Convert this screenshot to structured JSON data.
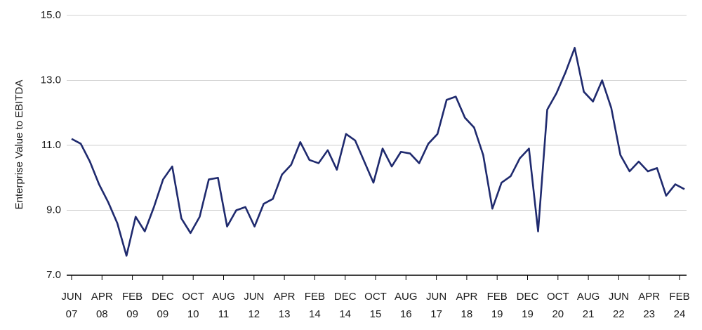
{
  "chart_data": {
    "type": "line",
    "y_label": "Enterprise Value to EBITDA",
    "x_tick_labels": [
      [
        "JUN",
        "07"
      ],
      [
        "APR",
        "08"
      ],
      [
        "FEB",
        "09"
      ],
      [
        "DEC",
        "09"
      ],
      [
        "OCT",
        "10"
      ],
      [
        "AUG",
        "11"
      ],
      [
        "JUN",
        "12"
      ],
      [
        "APR",
        "13"
      ],
      [
        "FEB",
        "14"
      ],
      [
        "DEC",
        "14"
      ],
      [
        "OCT",
        "15"
      ],
      [
        "AUG",
        "16"
      ],
      [
        "JUN",
        "17"
      ],
      [
        "APR",
        "18"
      ],
      [
        "FEB",
        "19"
      ],
      [
        "DEC",
        "19"
      ],
      [
        "OCT",
        "20"
      ],
      [
        "AUG",
        "21"
      ],
      [
        "JUN",
        "22"
      ],
      [
        "APR",
        "23"
      ],
      [
        "FEB",
        "24"
      ]
    ],
    "color": "#1f2a6e",
    "values": [
      11.2,
      11.05,
      10.5,
      9.8,
      9.25,
      8.6,
      7.6,
      8.8,
      8.35,
      9.1,
      9.95,
      10.35,
      8.75,
      8.3,
      8.8,
      9.95,
      10.0,
      8.5,
      9.0,
      9.1,
      8.5,
      9.2,
      9.35,
      10.1,
      10.4,
      11.1,
      10.55,
      10.45,
      10.85,
      10.25,
      11.35,
      11.15,
      10.5,
      9.85,
      10.9,
      10.35,
      10.8,
      10.75,
      10.45,
      11.05,
      11.35,
      12.4,
      12.5,
      11.85,
      11.55,
      10.7,
      9.05,
      9.85,
      10.05,
      10.6,
      10.9,
      8.35,
      12.1,
      12.6,
      13.25,
      14.0,
      12.65,
      12.35,
      13.0,
      12.15,
      10.7,
      10.2,
      10.5,
      10.2,
      10.3,
      9.45,
      9.8,
      9.65
    ],
    "ylim": [
      7,
      15
    ],
    "yticks": [
      {
        "value": 7,
        "label": "7.0"
      },
      {
        "value": 9,
        "label": "9.0"
      },
      {
        "value": 11,
        "label": "11.0"
      },
      {
        "value": 13,
        "label": "13.0"
      },
      {
        "value": 15,
        "label": "15.0"
      }
    ],
    "grid": true
  }
}
